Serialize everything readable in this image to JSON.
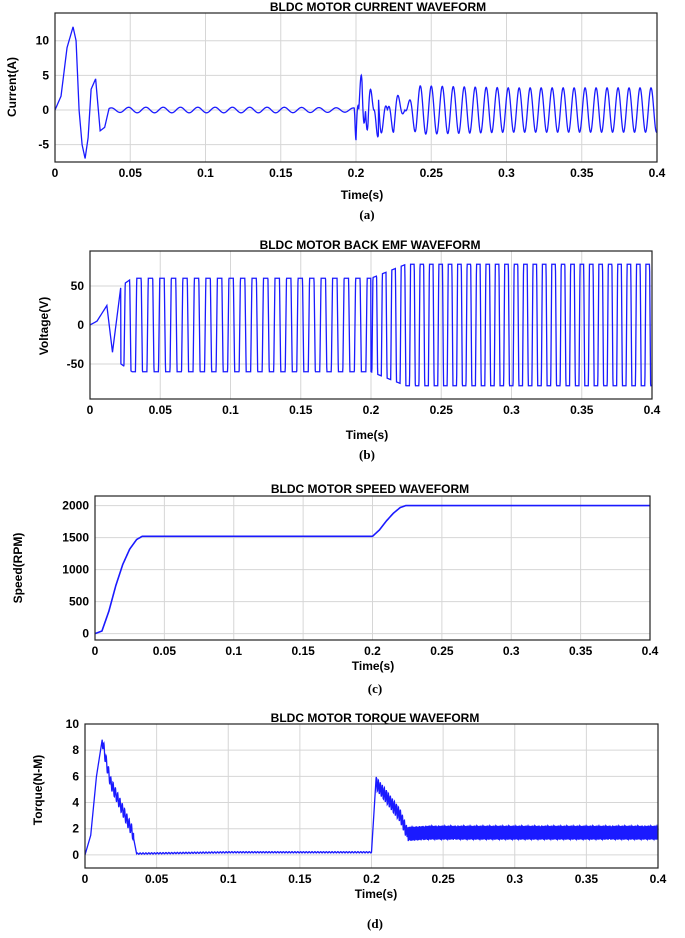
{
  "chart_data": [
    {
      "type": "line",
      "title": "BLDC MOTOR CURRENT WAVEFORM",
      "xlabel": "Time(s)",
      "ylabel": "Current(A)",
      "subcaption": "(a)",
      "xlim": [
        0,
        0.4
      ],
      "ylim": [
        -7.5,
        14
      ],
      "xticks": [
        0,
        0.05,
        0.1,
        0.15,
        0.2,
        0.25,
        0.3,
        0.35,
        0.4
      ],
      "xtick_labels": [
        "0",
        "0.05",
        "0.1",
        "0.15",
        "0.2",
        "0.25",
        "0.3",
        "0.35",
        "0.4"
      ],
      "yticks": [
        -5,
        0,
        5,
        10
      ],
      "ytick_labels": [
        "-5",
        "0",
        "5",
        "10"
      ],
      "grid": true,
      "series": [
        {
          "color": "#1a1aff",
          "x": [
            0,
            0.004,
            0.008,
            0.012,
            0.014,
            0.016,
            0.018,
            0.02,
            0.022,
            0.024,
            0.027,
            0.03,
            0.033,
            0.036,
            0.05,
            0.1,
            0.15,
            0.199,
            0.2,
            0.204,
            0.208,
            0.215,
            0.225,
            0.24,
            0.3,
            0.35,
            0.4
          ],
          "y": [
            0,
            2,
            9,
            12,
            10,
            0,
            -5,
            -7,
            -4,
            3,
            4.5,
            -3,
            -2.5,
            0.3,
            0.4,
            0.4,
            0.4,
            0.3,
            -6.5,
            8,
            -6,
            5,
            -3.5,
            3.5,
            3.2,
            3.2,
            3.2
          ],
          "description_note": "envelope peaks; steady-state oscillation is symmetric about 0"
        }
      ]
    },
    {
      "type": "line",
      "title": "BLDC MOTOR BACK EMF WAVEFORM",
      "xlabel": "Time(s)",
      "ylabel": "Voltage(V)",
      "subcaption": "(b)",
      "xlim": [
        0,
        0.4
      ],
      "ylim": [
        -95,
        95
      ],
      "xticks": [
        0,
        0.05,
        0.1,
        0.15,
        0.2,
        0.25,
        0.3,
        0.35,
        0.4
      ],
      "xtick_labels": [
        "0",
        "0.05",
        "0.1",
        "0.15",
        "0.2",
        "0.25",
        "0.3",
        "0.35",
        "0.4"
      ],
      "yticks": [
        -50,
        0,
        50
      ],
      "ytick_labels": [
        "-50",
        "0",
        "50"
      ],
      "grid": true,
      "series": [
        {
          "color": "#1a1aff",
          "x": [
            0,
            0.005,
            0.012,
            0.016,
            0.022,
            0.03,
            0.1,
            0.2,
            0.225,
            0.3,
            0.4
          ],
          "y": [
            0,
            5,
            25,
            -35,
            50,
            60,
            60,
            60,
            78,
            78,
            78
          ]
        }
      ]
    },
    {
      "type": "line",
      "title": "BLDC  MOTOR SPEED WAVEFORM",
      "xlabel": "Time(s)",
      "ylabel": "Speed(RPM)",
      "subcaption": "(c)",
      "xlim": [
        0,
        0.4
      ],
      "ylim": [
        -100,
        2150
      ],
      "xticks": [
        0,
        0.05,
        0.1,
        0.15,
        0.2,
        0.25,
        0.3,
        0.35,
        0.4
      ],
      "xtick_labels": [
        "0",
        "0.05",
        "0.1",
        "0.15",
        "0.2",
        "0.25",
        "0.3",
        "0.35",
        "0.4"
      ],
      "yticks": [
        0,
        500,
        1000,
        1500,
        2000
      ],
      "ytick_labels": [
        "0",
        "500",
        "1000",
        "1500",
        "2000"
      ],
      "grid": true,
      "series": [
        {
          "color": "#1a1aff",
          "x": [
            0,
            0.005,
            0.01,
            0.015,
            0.02,
            0.025,
            0.03,
            0.034,
            0.1,
            0.2,
            0.205,
            0.21,
            0.215,
            0.22,
            0.224,
            0.3,
            0.4
          ],
          "y": [
            0,
            40,
            350,
            750,
            1080,
            1320,
            1470,
            1520,
            1520,
            1520,
            1620,
            1760,
            1880,
            1970,
            2000,
            2000,
            2000
          ]
        }
      ]
    },
    {
      "type": "line",
      "title": "BLDC MOTOR TORQUE WAVEFORM",
      "xlabel": "Time(s)",
      "ylabel": "Torque(N-M)",
      "subcaption": "(d)",
      "xlim": [
        0,
        0.4
      ],
      "ylim": [
        -1,
        10
      ],
      "xticks": [
        0,
        0.05,
        0.1,
        0.15,
        0.2,
        0.25,
        0.3,
        0.35,
        0.4
      ],
      "xtick_labels": [
        "0",
        "0.05",
        "0.1",
        "0.15",
        "0.2",
        "0.25",
        "0.3",
        "0.35",
        "0.4"
      ],
      "yticks": [
        0,
        2,
        4,
        6,
        8,
        10
      ],
      "ytick_labels": [
        "0",
        "2",
        "4",
        "6",
        "8",
        "10"
      ],
      "grid": true,
      "series": [
        {
          "color": "#1a1aff",
          "x": [
            0,
            0.004,
            0.008,
            0.012,
            0.015,
            0.018,
            0.022,
            0.026,
            0.03,
            0.033,
            0.036,
            0.1,
            0.2,
            0.203,
            0.21,
            0.22,
            0.225,
            0.24,
            0.3,
            0.4
          ],
          "y": [
            0,
            1.5,
            6,
            8.8,
            7,
            5.5,
            4.5,
            3.5,
            2.5,
            1.8,
            0.1,
            0.2,
            0.2,
            5.5,
            4.5,
            3,
            1.6,
            1.7,
            1.7,
            1.7
          ]
        }
      ]
    }
  ]
}
